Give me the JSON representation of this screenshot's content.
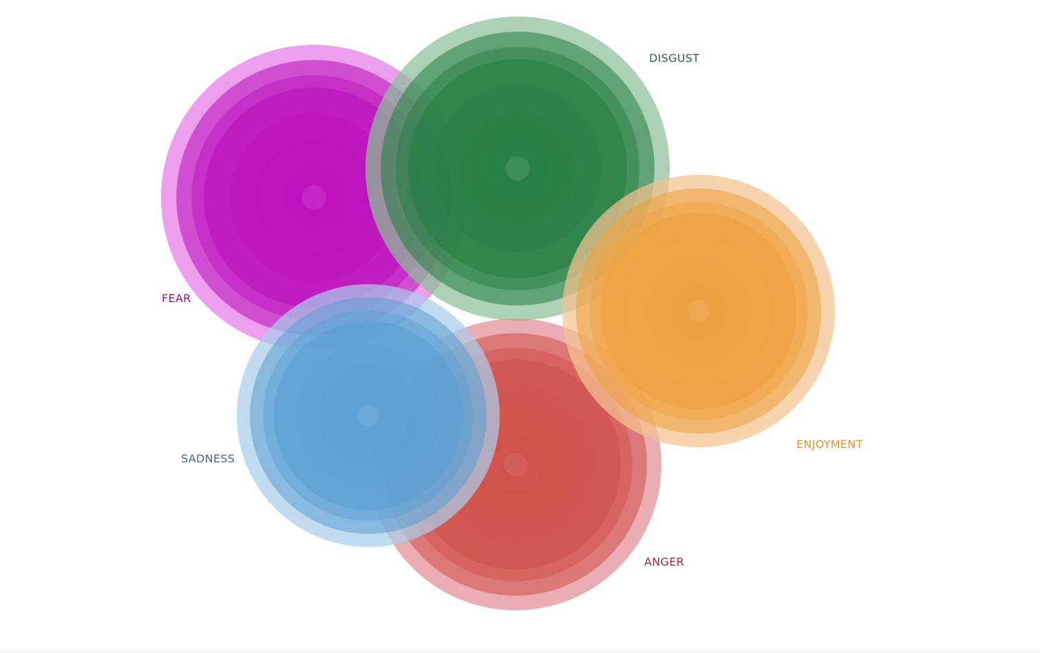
{
  "emotions": {
    "fear": {
      "label": "FEAR",
      "color": "#b90dba",
      "halo": "#e47ae6",
      "text_color": "#8a1a86"
    },
    "disgust": {
      "label": "DISGUST",
      "color": "#237d40",
      "halo": "#8cbf97",
      "text_color": "#24673a"
    },
    "enjoyment": {
      "label": "ENJOYMENT",
      "color": "#eea03b",
      "halo": "#f4c28f",
      "text_color": "#e8922f"
    },
    "sadness": {
      "label": "SADNESS",
      "color": "#5a9fd3",
      "halo": "#a9cdea",
      "text_color": "#4a62a6"
    },
    "anger": {
      "label": "ANGER",
      "color": "#d04e48",
      "halo": "#e08e95",
      "text_color": "#a8283a"
    }
  }
}
